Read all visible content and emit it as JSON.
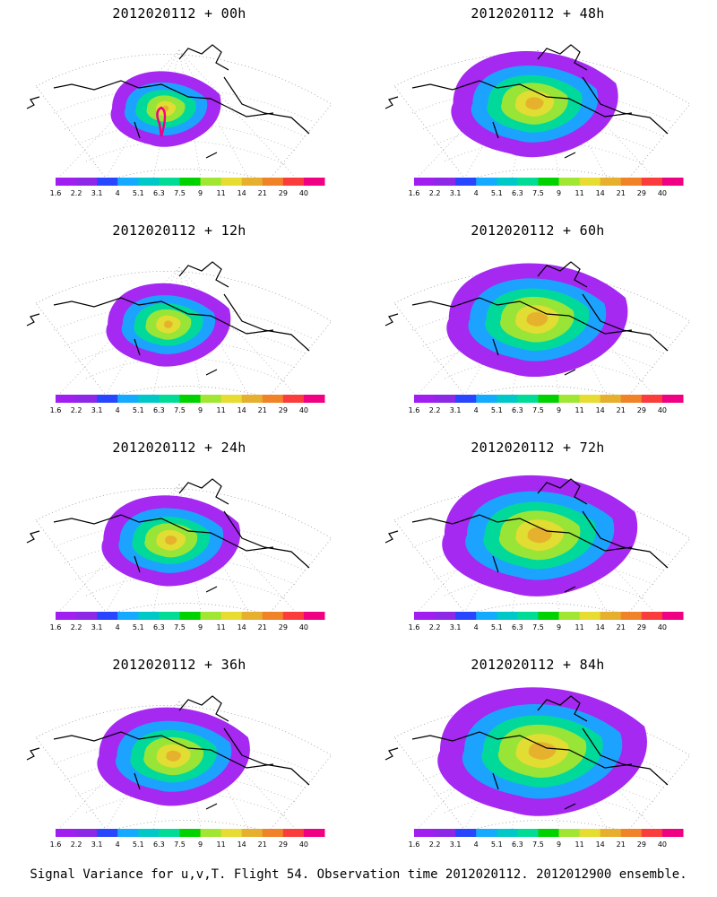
{
  "footer": "Signal Variance for u,v,T. Flight 54. Observation time 2012020112. 2012012900 ensemble.",
  "colorbar": {
    "labels": [
      "1.6",
      "2.2",
      "3.1",
      "4",
      "5.1",
      "6.3",
      "7.5",
      "9",
      "11",
      "14",
      "21",
      "29",
      "40"
    ],
    "colors": [
      "#a01ef0",
      "#8c28e6",
      "#2846ff",
      "#14aaff",
      "#00c8c8",
      "#00dc96",
      "#00d200",
      "#a0e632",
      "#e6dc32",
      "#e6af2d",
      "#f08228",
      "#fa3c3c",
      "#f00082"
    ]
  },
  "chart_data": [
    {
      "type": "heatmap",
      "title": "2012020112 + 00h",
      "lead_hours": 0
    },
    {
      "type": "heatmap",
      "title": "2012020112 + 48h",
      "lead_hours": 48
    },
    {
      "type": "heatmap",
      "title": "2012020112 + 12h",
      "lead_hours": 12
    },
    {
      "type": "heatmap",
      "title": "2012020112 + 60h",
      "lead_hours": 60
    },
    {
      "type": "heatmap",
      "title": "2012020112 + 24h",
      "lead_hours": 24
    },
    {
      "type": "heatmap",
      "title": "2012020112 + 72h",
      "lead_hours": 72
    },
    {
      "type": "heatmap",
      "title": "2012020112 + 36h",
      "lead_hours": 36
    },
    {
      "type": "heatmap",
      "title": "2012020112 + 84h",
      "lead_hours": 84
    }
  ]
}
